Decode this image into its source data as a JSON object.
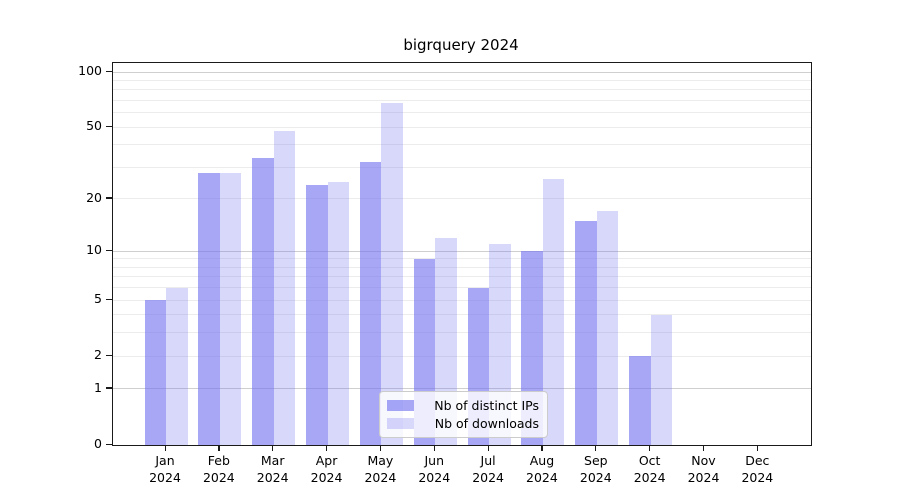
{
  "title": "bigrquery 2024",
  "chart_data": {
    "type": "bar",
    "title": "bigrquery 2024",
    "categories": [
      "Jan 2024",
      "Feb 2024",
      "Mar 2024",
      "Apr 2024",
      "May 2024",
      "Jun 2024",
      "Jul 2024",
      "Aug 2024",
      "Sep 2024",
      "Oct 2024",
      "Nov 2024",
      "Dec 2024"
    ],
    "series": [
      {
        "name": "Nb of distinct IPs",
        "values": [
          5,
          28,
          34,
          24,
          32,
          9,
          6,
          10,
          15,
          2,
          0,
          0
        ],
        "color": "rgba(115,115,240,0.63)"
      },
      {
        "name": "Nb of downloads",
        "values": [
          6,
          28,
          48,
          25,
          68,
          12,
          11,
          26,
          17,
          4,
          0,
          0
        ],
        "color": "rgba(115,115,240,0.28)"
      }
    ],
    "xlabel": "",
    "ylabel": "",
    "yscale": "log1p",
    "ylim": [
      0,
      112
    ],
    "y_ticks": [
      100,
      50,
      20,
      10,
      5,
      2,
      1,
      0
    ],
    "gridlines": {
      "major": [
        1,
        10,
        100
      ],
      "minor": [
        2,
        3,
        4,
        5,
        6,
        7,
        8,
        9,
        20,
        30,
        40,
        50,
        60,
        70,
        80,
        90
      ]
    },
    "legend_position": "lower center",
    "grid": true
  }
}
